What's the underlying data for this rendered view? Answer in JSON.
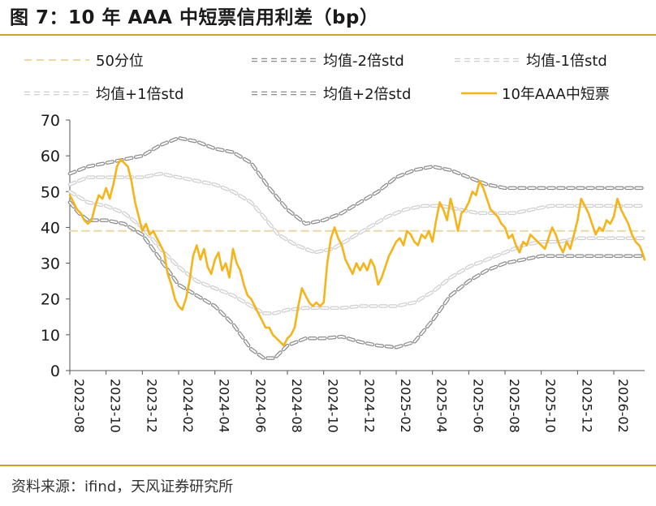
{
  "title": "图 7：10 年 AAA 中短票信用利差（bp）",
  "source": "资料来源：ifind，天风证券研究所",
  "colors": {
    "accent": "#c9a227",
    "series_main": "#f4b41a",
    "median": "#e8d9a6",
    "std2": "#8c8c8c",
    "std1": "#cfcfcf"
  },
  "chart_data": {
    "type": "line",
    "title": "10 年 AAA 中短票信用利差（bp）",
    "xlabel": "",
    "ylabel": "",
    "ylim": [
      0,
      70
    ],
    "yticks": [
      "0",
      "10",
      "20",
      "30",
      "40",
      "50",
      "60",
      "70"
    ],
    "xticks": [
      "2023-08",
      "2023-10",
      "2023-12",
      "2024-02",
      "2024-04",
      "2024-06",
      "2024-08",
      "2024-10",
      "2024-12",
      "2025-02",
      "2025-04",
      "2025-06",
      "2025-08",
      "2025-10",
      "2025-12",
      "2026-02"
    ],
    "grid": false,
    "legend": "top",
    "x_unit": "months since 2023-08",
    "series": [
      {
        "name": "50分位",
        "style": "dashed",
        "points": [
          [
            0,
            39
          ],
          [
            31.7,
            39
          ]
        ]
      },
      {
        "name": "均值-2倍std",
        "style": "double-dashed-dark",
        "points": [
          [
            0,
            47
          ],
          [
            0.5,
            44
          ],
          [
            1,
            42
          ],
          [
            2,
            42
          ],
          [
            3,
            41
          ],
          [
            4,
            38
          ],
          [
            5,
            31
          ],
          [
            6,
            24
          ],
          [
            7,
            21
          ],
          [
            8,
            18
          ],
          [
            9,
            13
          ],
          [
            10,
            6
          ],
          [
            10.7,
            3.5
          ],
          [
            11.3,
            3.5
          ],
          [
            12,
            7
          ],
          [
            13,
            9
          ],
          [
            14,
            9
          ],
          [
            15,
            9.5
          ],
          [
            16,
            8
          ],
          [
            17,
            7
          ],
          [
            18,
            6.5
          ],
          [
            19,
            8
          ],
          [
            20,
            14
          ],
          [
            21,
            21
          ],
          [
            22,
            25
          ],
          [
            23,
            28
          ],
          [
            24,
            30
          ],
          [
            25,
            31
          ],
          [
            26,
            32
          ],
          [
            27,
            32
          ],
          [
            28,
            32
          ],
          [
            29,
            32
          ],
          [
            30,
            32
          ],
          [
            31,
            32
          ],
          [
            31.7,
            32
          ]
        ]
      },
      {
        "name": "均值-1倍std",
        "style": "double-dashed-light",
        "points": [
          [
            0,
            50
          ],
          [
            1,
            47
          ],
          [
            2,
            46
          ],
          [
            3,
            44
          ],
          [
            4,
            40
          ],
          [
            5,
            34
          ],
          [
            6,
            29
          ],
          [
            7,
            25
          ],
          [
            8,
            23
          ],
          [
            9,
            21
          ],
          [
            10,
            18
          ],
          [
            10.7,
            16
          ],
          [
            11.3,
            16
          ],
          [
            12,
            17
          ],
          [
            13,
            17.5
          ],
          [
            14,
            17.5
          ],
          [
            15,
            17.5
          ],
          [
            16,
            18
          ],
          [
            17,
            18
          ],
          [
            18,
            18
          ],
          [
            19,
            19
          ],
          [
            20,
            22
          ],
          [
            21,
            26
          ],
          [
            22,
            29
          ],
          [
            23,
            31
          ],
          [
            24,
            33
          ],
          [
            25,
            35
          ],
          [
            26,
            36
          ],
          [
            27,
            36
          ],
          [
            28,
            37
          ],
          [
            29,
            37
          ],
          [
            30,
            37
          ],
          [
            31,
            37
          ],
          [
            31.7,
            37
          ]
        ]
      },
      {
        "name": "均值+1倍std",
        "style": "double-dashed-light",
        "points": [
          [
            0,
            52
          ],
          [
            1,
            54
          ],
          [
            2,
            54
          ],
          [
            3,
            54
          ],
          [
            4,
            54
          ],
          [
            5,
            55
          ],
          [
            6,
            54
          ],
          [
            7,
            53
          ],
          [
            8,
            52
          ],
          [
            9,
            50
          ],
          [
            10,
            47
          ],
          [
            10.7,
            43
          ],
          [
            11.5,
            38
          ],
          [
            12.5,
            35
          ],
          [
            13.5,
            33
          ],
          [
            14.5,
            34
          ],
          [
            15.5,
            37
          ],
          [
            16.5,
            40
          ],
          [
            17.5,
            43
          ],
          [
            18.5,
            45
          ],
          [
            19.5,
            46
          ],
          [
            20.5,
            46
          ],
          [
            21.5,
            45
          ],
          [
            22.5,
            44
          ],
          [
            23.5,
            44
          ],
          [
            24.5,
            44
          ],
          [
            25.5,
            45
          ],
          [
            26.5,
            46
          ],
          [
            27.5,
            46
          ],
          [
            28.5,
            46
          ],
          [
            29.5,
            46
          ],
          [
            30.5,
            46
          ],
          [
            31.7,
            46
          ]
        ]
      },
      {
        "name": "均值+2倍std",
        "style": "double-dashed-dark",
        "points": [
          [
            0,
            55
          ],
          [
            1,
            57
          ],
          [
            2,
            58
          ],
          [
            3,
            59
          ],
          [
            4,
            60
          ],
          [
            5,
            63
          ],
          [
            6,
            65
          ],
          [
            7,
            64
          ],
          [
            8,
            62
          ],
          [
            9,
            61
          ],
          [
            10,
            58
          ],
          [
            11,
            51
          ],
          [
            12,
            45
          ],
          [
            13,
            41
          ],
          [
            14,
            42
          ],
          [
            15,
            44
          ],
          [
            16,
            47
          ],
          [
            17,
            50
          ],
          [
            18,
            54
          ],
          [
            19,
            56
          ],
          [
            20,
            57
          ],
          [
            21,
            56
          ],
          [
            22,
            54
          ],
          [
            23,
            52
          ],
          [
            24,
            51
          ],
          [
            25,
            51
          ],
          [
            26,
            51
          ],
          [
            27,
            51
          ],
          [
            28,
            51
          ],
          [
            29,
            51
          ],
          [
            30,
            51
          ],
          [
            31,
            51
          ],
          [
            31.7,
            51
          ]
        ]
      },
      {
        "name": "10年AAA中短票",
        "style": "solid",
        "points": [
          [
            0,
            49
          ],
          [
            0.2,
            47
          ],
          [
            0.4,
            45
          ],
          [
            0.6,
            44
          ],
          [
            0.8,
            42
          ],
          [
            1,
            41
          ],
          [
            1.2,
            42
          ],
          [
            1.4,
            46
          ],
          [
            1.6,
            49
          ],
          [
            1.8,
            48
          ],
          [
            2,
            51
          ],
          [
            2.2,
            48
          ],
          [
            2.4,
            52
          ],
          [
            2.6,
            57
          ],
          [
            2.8,
            59
          ],
          [
            3,
            58
          ],
          [
            3.2,
            57
          ],
          [
            3.4,
            53
          ],
          [
            3.6,
            47
          ],
          [
            3.8,
            43
          ],
          [
            4,
            39
          ],
          [
            4.2,
            41
          ],
          [
            4.4,
            38
          ],
          [
            4.6,
            39
          ],
          [
            4.8,
            37
          ],
          [
            5,
            35
          ],
          [
            5.2,
            33
          ],
          [
            5.4,
            27
          ],
          [
            5.6,
            24
          ],
          [
            5.8,
            20
          ],
          [
            6,
            18
          ],
          [
            6.2,
            17
          ],
          [
            6.4,
            20
          ],
          [
            6.6,
            25
          ],
          [
            6.8,
            32
          ],
          [
            7,
            35
          ],
          [
            7.2,
            31
          ],
          [
            7.4,
            34
          ],
          [
            7.6,
            29
          ],
          [
            7.8,
            27
          ],
          [
            8,
            31
          ],
          [
            8.2,
            33
          ],
          [
            8.4,
            28
          ],
          [
            8.6,
            30
          ],
          [
            8.8,
            26
          ],
          [
            9,
            34
          ],
          [
            9.2,
            30
          ],
          [
            9.4,
            28
          ],
          [
            9.6,
            24
          ],
          [
            9.8,
            21
          ],
          [
            10,
            20
          ],
          [
            10.2,
            18
          ],
          [
            10.4,
            16
          ],
          [
            10.6,
            14
          ],
          [
            10.8,
            12
          ],
          [
            11,
            12
          ],
          [
            11.2,
            10
          ],
          [
            11.4,
            9
          ],
          [
            11.6,
            8
          ],
          [
            11.8,
            7
          ],
          [
            12,
            9
          ],
          [
            12.2,
            10
          ],
          [
            12.4,
            12
          ],
          [
            12.6,
            18
          ],
          [
            12.8,
            23
          ],
          [
            13,
            21
          ],
          [
            13.2,
            19
          ],
          [
            13.4,
            18
          ],
          [
            13.6,
            19
          ],
          [
            13.8,
            18
          ],
          [
            14,
            19
          ],
          [
            14.2,
            30
          ],
          [
            14.4,
            37
          ],
          [
            14.6,
            40
          ],
          [
            14.8,
            37
          ],
          [
            15,
            35
          ],
          [
            15.2,
            31
          ],
          [
            15.4,
            29
          ],
          [
            15.6,
            27
          ],
          [
            15.8,
            30
          ],
          [
            16,
            28
          ],
          [
            16.2,
            30
          ],
          [
            16.4,
            28
          ],
          [
            16.6,
            31
          ],
          [
            16.8,
            29
          ],
          [
            17,
            24
          ],
          [
            17.2,
            26
          ],
          [
            17.4,
            29
          ],
          [
            17.6,
            32
          ],
          [
            17.8,
            34
          ],
          [
            18,
            36
          ],
          [
            18.2,
            37
          ],
          [
            18.4,
            35
          ],
          [
            18.6,
            39
          ],
          [
            18.8,
            38
          ],
          [
            19,
            36
          ],
          [
            19.2,
            35
          ],
          [
            19.4,
            38
          ],
          [
            19.6,
            37
          ],
          [
            19.8,
            39
          ],
          [
            20,
            36
          ],
          [
            20.2,
            42
          ],
          [
            20.4,
            47
          ],
          [
            20.6,
            45
          ],
          [
            20.8,
            42
          ],
          [
            21,
            48
          ],
          [
            21.2,
            44
          ],
          [
            21.4,
            39
          ],
          [
            21.6,
            44
          ],
          [
            21.8,
            45
          ],
          [
            22,
            47
          ],
          [
            22.2,
            50
          ],
          [
            22.4,
            49
          ],
          [
            22.6,
            53
          ],
          [
            22.8,
            51
          ],
          [
            23,
            48
          ],
          [
            23.2,
            45
          ],
          [
            23.4,
            44
          ],
          [
            23.6,
            43
          ],
          [
            23.8,
            41
          ],
          [
            24,
            40
          ],
          [
            24.2,
            37
          ],
          [
            24.4,
            38
          ],
          [
            24.6,
            35
          ],
          [
            24.8,
            33
          ],
          [
            25,
            36
          ],
          [
            25.2,
            35
          ],
          [
            25.4,
            38
          ],
          [
            25.6,
            37
          ],
          [
            25.8,
            36
          ],
          [
            26,
            35
          ],
          [
            26.2,
            34
          ],
          [
            26.4,
            37
          ],
          [
            26.6,
            40
          ],
          [
            26.8,
            38
          ],
          [
            27,
            35
          ],
          [
            27.2,
            33
          ],
          [
            27.4,
            36
          ],
          [
            27.6,
            34
          ],
          [
            27.8,
            38
          ],
          [
            28,
            42
          ],
          [
            28.2,
            48
          ],
          [
            28.4,
            46
          ],
          [
            28.6,
            44
          ],
          [
            28.8,
            41
          ],
          [
            29,
            38
          ],
          [
            29.2,
            40
          ],
          [
            29.4,
            39
          ],
          [
            29.6,
            42
          ],
          [
            29.8,
            41
          ],
          [
            30,
            43
          ],
          [
            30.2,
            48
          ],
          [
            30.4,
            45
          ],
          [
            30.6,
            43
          ],
          [
            30.8,
            41
          ],
          [
            31,
            38
          ],
          [
            31.2,
            36
          ],
          [
            31.4,
            35
          ],
          [
            31.5,
            34
          ],
          [
            31.7,
            31
          ]
        ]
      }
    ]
  }
}
